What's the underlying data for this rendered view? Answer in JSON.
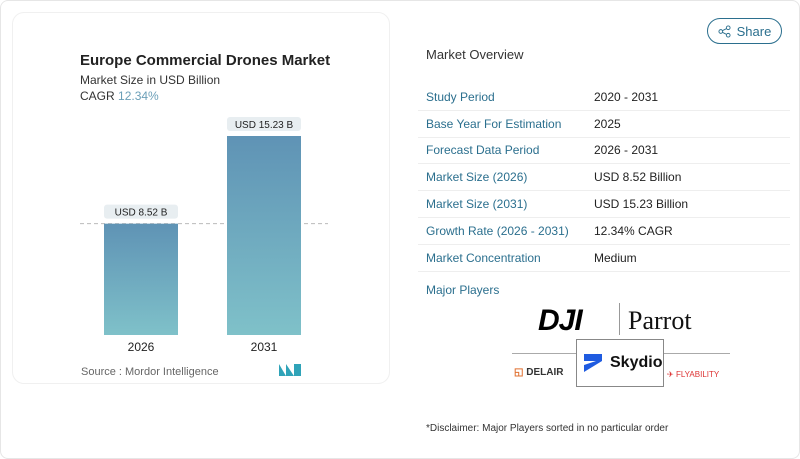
{
  "header": {
    "share_label": "Share",
    "share_icon": "share-icon"
  },
  "chart_data": {
    "type": "bar",
    "title": "Europe Commercial Drones Market",
    "subtitle": "Market Size in USD Billion",
    "cagr_label": "CAGR",
    "cagr_value": "12.34%",
    "categories": [
      "2026",
      "2031"
    ],
    "values": [
      8.52,
      15.23
    ],
    "data_labels": [
      "USD 8.52 B",
      "USD 15.23 B"
    ],
    "ylim": [
      0,
      16
    ],
    "grid": false,
    "bar_color_top": "#5f93b5",
    "bar_color_bottom": "#7fc1c9",
    "source": "Source :  Mordor Intelligence"
  },
  "overview": {
    "title": "Market Overview",
    "rows": [
      {
        "label": "Study Period",
        "value": "2020 - 2031"
      },
      {
        "label": "Base Year For Estimation",
        "value": "2025"
      },
      {
        "label": "Forecast Data Period",
        "value": "2026 - 2031"
      },
      {
        "label": "Market Size (2026)",
        "value": "USD 8.52 Billion"
      },
      {
        "label": "Market Size (2031)",
        "value": "USD 15.23 Billion"
      },
      {
        "label": "Growth Rate (2026 - 2031)",
        "value": "12.34% CAGR"
      },
      {
        "label": "Market Concentration",
        "value": "Medium"
      }
    ],
    "players_label": "Major Players",
    "players": [
      "DJI",
      "Parrot",
      "Skydio",
      "DELAIR",
      "FLYABILITY"
    ],
    "disclaimer": "*Disclaimer: Major Players sorted in no particular order"
  }
}
